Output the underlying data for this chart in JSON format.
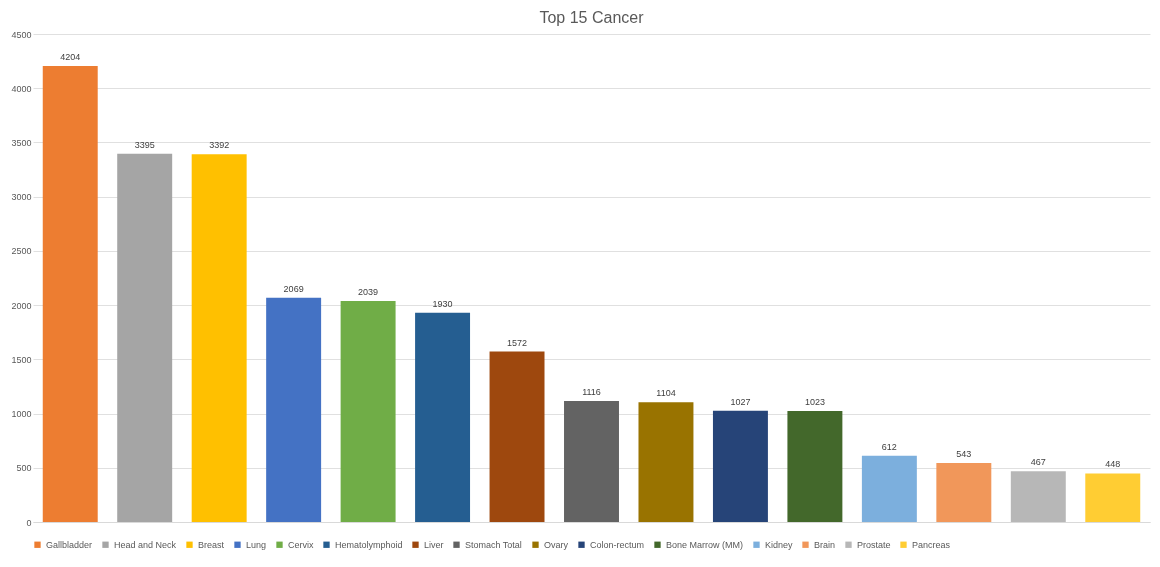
{
  "chart_data": {
    "type": "bar",
    "title": "Top 15 Cancer",
    "categories": [
      null,
      null,
      null,
      null,
      null,
      null,
      null,
      null,
      null,
      null,
      null,
      null,
      null,
      null,
      null
    ],
    "series": [
      {
        "name": "Gallbladder",
        "color": "#ed7d31",
        "values": [
          4204,
          null,
          null,
          null,
          null,
          null,
          null,
          null,
          null,
          null,
          null,
          null,
          null,
          null,
          null
        ]
      },
      {
        "name": "Head and Neck",
        "color": "#a5a5a5",
        "values": [
          null,
          3395,
          null,
          null,
          null,
          null,
          null,
          null,
          null,
          null,
          null,
          null,
          null,
          null,
          null
        ]
      },
      {
        "name": "Breast",
        "color": "#ffc000",
        "values": [
          null,
          null,
          3392,
          null,
          null,
          null,
          null,
          null,
          null,
          null,
          null,
          null,
          null,
          null,
          null
        ]
      },
      {
        "name": "Lung",
        "color": "#4472c4",
        "values": [
          null,
          null,
          null,
          2069,
          null,
          null,
          null,
          null,
          null,
          null,
          null,
          null,
          null,
          null,
          null
        ]
      },
      {
        "name": "Cervix",
        "color": "#70ad47",
        "values": [
          null,
          null,
          null,
          null,
          2039,
          null,
          null,
          null,
          null,
          null,
          null,
          null,
          null,
          null,
          null
        ]
      },
      {
        "name": "Hematolymphoid",
        "color": "#255e91",
        "values": [
          null,
          null,
          null,
          null,
          null,
          1930,
          null,
          null,
          null,
          null,
          null,
          null,
          null,
          null,
          null
        ]
      },
      {
        "name": "Liver",
        "color": "#9e480e",
        "values": [
          null,
          null,
          null,
          null,
          null,
          null,
          1572,
          null,
          null,
          null,
          null,
          null,
          null,
          null,
          null
        ]
      },
      {
        "name": "Stomach Total",
        "color": "#636363",
        "values": [
          null,
          null,
          null,
          null,
          null,
          null,
          null,
          1116,
          null,
          null,
          null,
          null,
          null,
          null,
          null
        ]
      },
      {
        "name": "Ovary",
        "color": "#997300",
        "values": [
          null,
          null,
          null,
          null,
          null,
          null,
          null,
          null,
          1104,
          null,
          null,
          null,
          null,
          null,
          null
        ]
      },
      {
        "name": "Colon-rectum",
        "color": "#264478",
        "values": [
          null,
          null,
          null,
          null,
          null,
          null,
          null,
          null,
          null,
          1027,
          null,
          null,
          null,
          null,
          null
        ]
      },
      {
        "name": "Bone Marrow (MM)",
        "color": "#43682b",
        "values": [
          null,
          null,
          null,
          null,
          null,
          null,
          null,
          null,
          null,
          null,
          1023,
          null,
          null,
          null,
          null
        ]
      },
      {
        "name": "Kidney",
        "color": "#7cafdd",
        "values": [
          null,
          null,
          null,
          null,
          null,
          null,
          null,
          null,
          null,
          null,
          null,
          612,
          null,
          null,
          null
        ]
      },
      {
        "name": "Brain",
        "color": "#f1975a",
        "values": [
          null,
          null,
          null,
          null,
          null,
          null,
          null,
          null,
          null,
          null,
          null,
          null,
          543,
          null,
          null
        ]
      },
      {
        "name": "Prostate",
        "color": "#b7b7b7",
        "values": [
          null,
          null,
          null,
          null,
          null,
          null,
          null,
          null,
          null,
          null,
          null,
          null,
          null,
          467,
          null
        ]
      },
      {
        "name": "Pancreas",
        "color": "#ffcd33",
        "values": [
          null,
          null,
          null,
          null,
          null,
          null,
          null,
          null,
          null,
          null,
          null,
          null,
          null,
          null,
          448
        ]
      }
    ],
    "ylim": [
      0,
      4500
    ],
    "yticks": [
      0,
      500,
      1000,
      1500,
      2000,
      2500,
      3000,
      3500,
      4000,
      4500
    ],
    "grid": "y",
    "legend": "bottom",
    "data_labels": true
  }
}
